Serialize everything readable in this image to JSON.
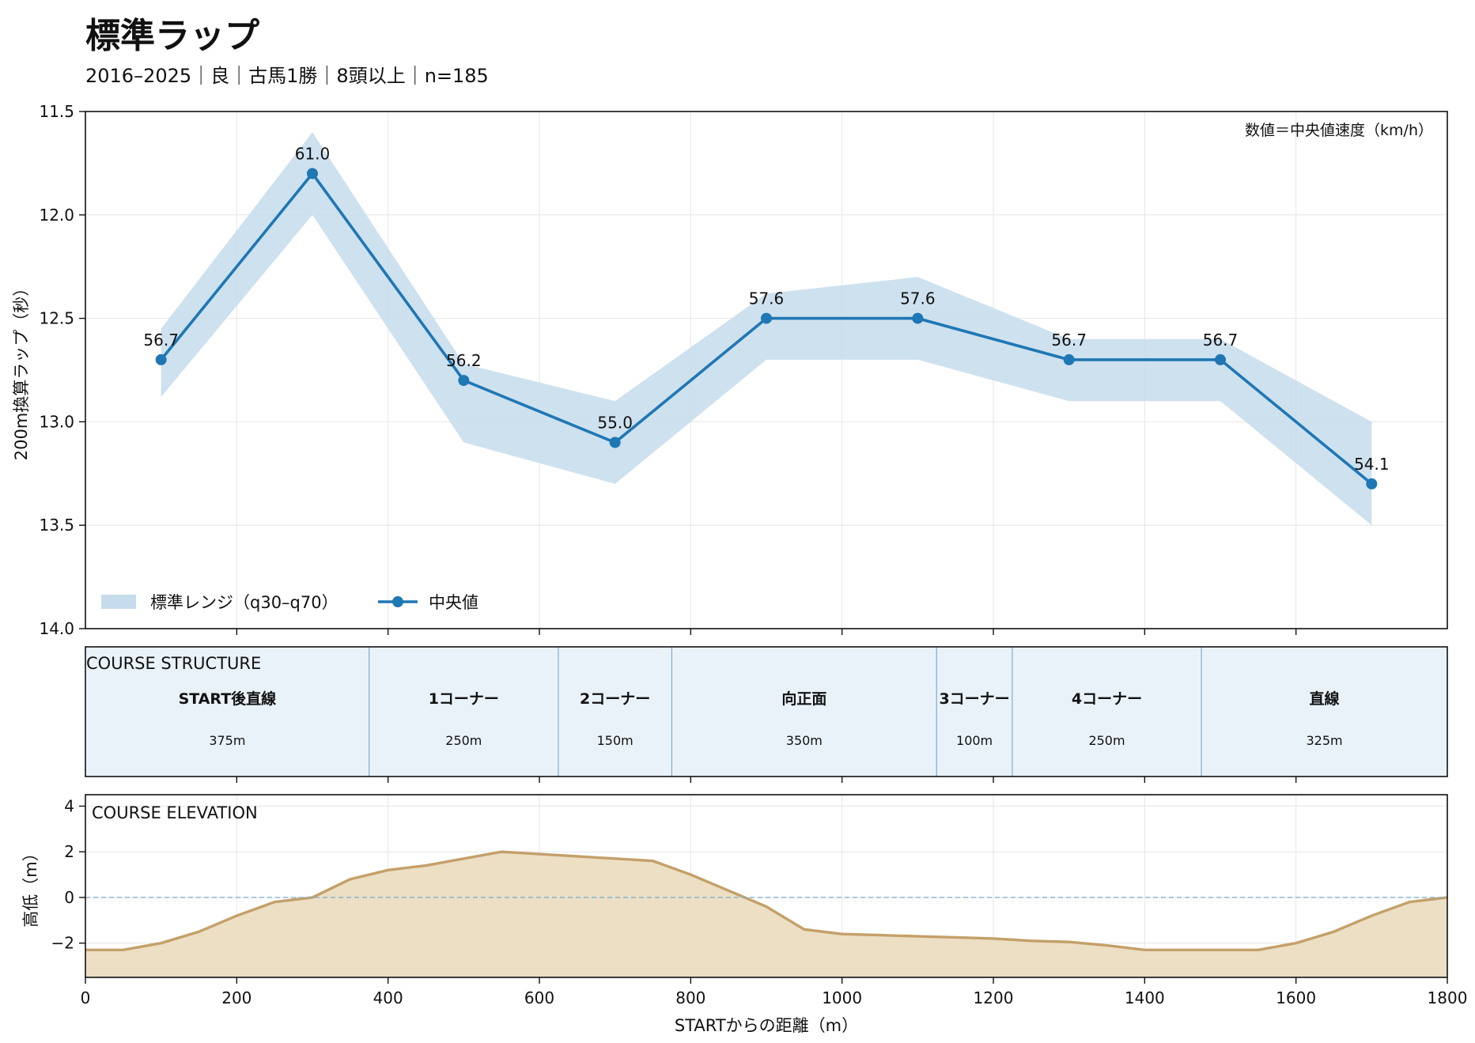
{
  "header": {
    "title": "標準ラップ",
    "subtitle": "2016–2025｜良｜古馬1勝｜8頭以上｜n=185"
  },
  "colors": {
    "line": "#1f77b4",
    "band": "#c6dcec",
    "segment_fill": "#eaf2f9",
    "segment_border": "#6fa8d0",
    "elevation_fill": "#ecdfc4",
    "elevation_line": "#c4a06a",
    "zero_line": "#7fb0d0",
    "grid": "#e6e6e6"
  },
  "chart_data": [
    {
      "type": "line",
      "x": [
        100,
        300,
        500,
        700,
        900,
        1100,
        1300,
        1500,
        1700
      ],
      "series": [
        {
          "name": "中央値",
          "values": [
            12.7,
            11.8,
            12.8,
            13.1,
            12.5,
            12.5,
            12.7,
            12.7,
            13.3
          ],
          "labels": [
            "56.7",
            "61.0",
            "56.2",
            "55.0",
            "57.6",
            "57.6",
            "56.7",
            "56.7",
            "54.1"
          ]
        }
      ],
      "band": {
        "name": "標準レンジ（q30–q70）",
        "low": [
          12.55,
          11.6,
          12.72,
          12.9,
          12.38,
          12.3,
          12.6,
          12.6,
          13.0
        ],
        "high": [
          12.88,
          12.0,
          13.1,
          13.3,
          12.7,
          12.7,
          12.9,
          12.9,
          13.5
        ]
      },
      "xlim": [
        0,
        1800
      ],
      "ylim": [
        11.5,
        14.0
      ],
      "y_inverted": true,
      "yticks": [
        "11.5",
        "12.0",
        "12.5",
        "13.0",
        "13.5",
        "14.0"
      ],
      "ylabel": "200m換算ラップ（秒）",
      "annotation": "数値＝中央値速度（km/h）",
      "legend_placement": "lower-left",
      "grid": true
    },
    {
      "type": "bar",
      "title": "COURSE STRUCTURE",
      "segments": [
        {
          "name": "START後直線",
          "length": "375m",
          "start": 0,
          "end": 375
        },
        {
          "name": "1コーナー",
          "length": "250m",
          "start": 375,
          "end": 625
        },
        {
          "name": "2コーナー",
          "length": "150m",
          "start": 625,
          "end": 775
        },
        {
          "name": "向正面",
          "length": "350m",
          "start": 775,
          "end": 1125
        },
        {
          "name": "3コーナー",
          "length": "100m",
          "start": 1125,
          "end": 1225
        },
        {
          "name": "4コーナー",
          "length": "250m",
          "start": 1225,
          "end": 1475
        },
        {
          "name": "直線",
          "length": "325m",
          "start": 1475,
          "end": 1800
        }
      ],
      "xlim": [
        0,
        1800
      ]
    },
    {
      "type": "area",
      "title": "COURSE ELEVATION",
      "x": [
        0,
        50,
        100,
        150,
        200,
        250,
        300,
        350,
        400,
        450,
        500,
        550,
        600,
        650,
        700,
        750,
        800,
        850,
        900,
        950,
        1000,
        1050,
        1100,
        1150,
        1200,
        1250,
        1300,
        1350,
        1400,
        1450,
        1500,
        1550,
        1600,
        1650,
        1700,
        1750,
        1800
      ],
      "values": [
        -2.3,
        -2.3,
        -2.0,
        -1.5,
        -0.8,
        -0.2,
        0.0,
        0.8,
        1.2,
        1.4,
        1.7,
        2.0,
        1.9,
        1.8,
        1.7,
        1.6,
        1.0,
        0.3,
        -0.4,
        -1.4,
        -1.6,
        -1.65,
        -1.7,
        -1.75,
        -1.8,
        -1.9,
        -1.95,
        -2.1,
        -2.3,
        -2.3,
        -2.3,
        -2.3,
        -2.0,
        -1.5,
        -0.8,
        -0.2,
        0.0
      ],
      "xlim": [
        0,
        1800
      ],
      "ylim": [
        -3.5,
        4.5
      ],
      "yticks": [
        "4",
        "2",
        "0",
        "−2"
      ],
      "xticks": [
        "0",
        "200",
        "400",
        "600",
        "800",
        "1000",
        "1200",
        "1400",
        "1600",
        "1800"
      ],
      "ylabel": "高低（m）",
      "xlabel": "STARTからの距離（m）",
      "reference_line": 0,
      "grid": true
    }
  ]
}
